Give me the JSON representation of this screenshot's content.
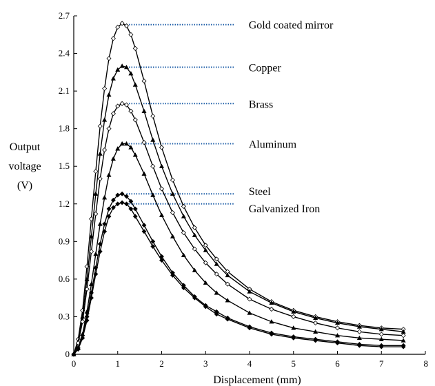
{
  "chart_data": {
    "type": "line",
    "title": "",
    "xlabel": "Displacement (mm)",
    "ylabel_lines": [
      "Output",
      "voltage",
      "(V)"
    ],
    "xlim": [
      0,
      8
    ],
    "ylim": [
      0,
      2.7
    ],
    "x_ticks": [
      "0",
      "1",
      "2",
      "3",
      "4",
      "5",
      "6",
      "7",
      "8"
    ],
    "y_ticks": [
      "0",
      "0.3",
      "0.6",
      "0.9",
      "1.2",
      "1.5",
      "1.8",
      "2.1",
      "2.4",
      "2.7"
    ],
    "grid": false,
    "line_color": "#000000",
    "leader_color": "#1f5fa8",
    "series": [
      {
        "name": "Gold coated mirror",
        "marker": "open-diamond",
        "x": [
          0,
          0.1,
          0.2,
          0.3,
          0.4,
          0.5,
          0.6,
          0.7,
          0.8,
          0.9,
          1.0,
          1.1,
          1.2,
          1.3,
          1.4,
          1.6,
          1.8,
          2.0,
          2.25,
          2.5,
          2.75,
          3.0,
          3.25,
          3.5,
          4.0,
          4.5,
          5.0,
          5.5,
          6.0,
          6.5,
          7.0,
          7.5
        ],
        "values": [
          0,
          0.12,
          0.35,
          0.7,
          1.08,
          1.46,
          1.82,
          2.12,
          2.36,
          2.52,
          2.61,
          2.64,
          2.62,
          2.55,
          2.44,
          2.18,
          1.9,
          1.65,
          1.39,
          1.18,
          1.01,
          0.87,
          0.76,
          0.66,
          0.52,
          0.42,
          0.35,
          0.3,
          0.26,
          0.23,
          0.21,
          0.2
        ]
      },
      {
        "name": "Copper",
        "marker": "filled-triangle",
        "x": [
          0,
          0.1,
          0.2,
          0.3,
          0.4,
          0.5,
          0.6,
          0.7,
          0.8,
          0.9,
          1.0,
          1.1,
          1.2,
          1.3,
          1.4,
          1.6,
          1.8,
          2.0,
          2.25,
          2.5,
          2.75,
          3.0,
          3.25,
          3.5,
          4.0,
          4.5,
          5.0,
          5.5,
          6.0,
          6.5,
          7.0,
          7.5
        ],
        "values": [
          0,
          0.1,
          0.3,
          0.6,
          0.94,
          1.28,
          1.6,
          1.87,
          2.07,
          2.2,
          2.27,
          2.3,
          2.29,
          2.24,
          2.15,
          1.94,
          1.71,
          1.5,
          1.28,
          1.1,
          0.95,
          0.83,
          0.72,
          0.63,
          0.5,
          0.41,
          0.34,
          0.29,
          0.25,
          0.22,
          0.2,
          0.18
        ]
      },
      {
        "name": "Brass",
        "marker": "open-diamond",
        "x": [
          0,
          0.1,
          0.2,
          0.3,
          0.4,
          0.5,
          0.6,
          0.7,
          0.8,
          0.9,
          1.0,
          1.1,
          1.2,
          1.3,
          1.4,
          1.6,
          1.8,
          2.0,
          2.25,
          2.5,
          2.75,
          3.0,
          3.25,
          3.5,
          4.0,
          4.5,
          5.0,
          5.5,
          6.0,
          6.5,
          7.0,
          7.5
        ],
        "values": [
          0,
          0.09,
          0.26,
          0.52,
          0.82,
          1.12,
          1.4,
          1.63,
          1.8,
          1.92,
          1.98,
          2.0,
          1.99,
          1.94,
          1.87,
          1.69,
          1.5,
          1.32,
          1.13,
          0.97,
          0.84,
          0.73,
          0.64,
          0.56,
          0.44,
          0.36,
          0.3,
          0.25,
          0.21,
          0.18,
          0.16,
          0.15
        ]
      },
      {
        "name": "Aluminum",
        "marker": "filled-triangle",
        "x": [
          0,
          0.1,
          0.2,
          0.3,
          0.4,
          0.5,
          0.6,
          0.7,
          0.8,
          0.9,
          1.0,
          1.1,
          1.2,
          1.3,
          1.4,
          1.6,
          1.8,
          2.0,
          2.25,
          2.5,
          2.75,
          3.0,
          3.25,
          3.5,
          4.0,
          4.5,
          5.0,
          5.5,
          6.0,
          6.5,
          7.0,
          7.5
        ],
        "values": [
          0,
          0.05,
          0.16,
          0.34,
          0.56,
          0.8,
          1.04,
          1.25,
          1.43,
          1.56,
          1.64,
          1.68,
          1.68,
          1.65,
          1.59,
          1.44,
          1.27,
          1.11,
          0.94,
          0.79,
          0.67,
          0.57,
          0.49,
          0.43,
          0.33,
          0.26,
          0.21,
          0.18,
          0.15,
          0.13,
          0.12,
          0.11
        ]
      },
      {
        "name": "Steel",
        "marker": "filled-diamond",
        "x": [
          0,
          0.1,
          0.2,
          0.3,
          0.4,
          0.5,
          0.6,
          0.7,
          0.8,
          0.9,
          1.0,
          1.1,
          1.2,
          1.3,
          1.4,
          1.6,
          1.8,
          2.0,
          2.25,
          2.5,
          2.75,
          3.0,
          3.25,
          3.5,
          4.0,
          4.5,
          5.0,
          5.5,
          6.0,
          6.5,
          7.0,
          7.5
        ],
        "values": [
          0,
          0.05,
          0.15,
          0.3,
          0.49,
          0.69,
          0.88,
          1.04,
          1.16,
          1.23,
          1.27,
          1.28,
          1.26,
          1.22,
          1.16,
          1.03,
          0.9,
          0.78,
          0.65,
          0.55,
          0.46,
          0.39,
          0.34,
          0.29,
          0.22,
          0.17,
          0.14,
          0.12,
          0.1,
          0.08,
          0.07,
          0.07
        ]
      },
      {
        "name": "Galvanized Iron",
        "marker": "filled-diamond",
        "x": [
          0,
          0.1,
          0.2,
          0.3,
          0.4,
          0.5,
          0.6,
          0.7,
          0.8,
          0.9,
          1.0,
          1.1,
          1.2,
          1.3,
          1.4,
          1.6,
          1.8,
          2.0,
          2.25,
          2.5,
          2.75,
          3.0,
          3.25,
          3.5,
          4.0,
          4.5,
          5.0,
          5.5,
          6.0,
          6.5,
          7.0,
          7.5
        ],
        "values": [
          0,
          0.04,
          0.13,
          0.27,
          0.45,
          0.64,
          0.82,
          0.98,
          1.1,
          1.17,
          1.2,
          1.21,
          1.2,
          1.16,
          1.1,
          0.98,
          0.86,
          0.75,
          0.63,
          0.53,
          0.45,
          0.38,
          0.32,
          0.28,
          0.21,
          0.16,
          0.13,
          0.11,
          0.09,
          0.07,
          0.06,
          0.06
        ]
      }
    ],
    "annotations": [
      {
        "text": "Gold coated mirror",
        "x_start": 1.2,
        "x_end": 3.65,
        "y": 2.63
      },
      {
        "text": "Copper",
        "x_start": 1.2,
        "x_end": 3.65,
        "y": 2.29
      },
      {
        "text": "Brass",
        "x_start": 1.2,
        "x_end": 3.65,
        "y": 2.0
      },
      {
        "text": "Aluminum",
        "x_start": 1.25,
        "x_end": 3.65,
        "y": 1.68
      },
      {
        "text": "Steel",
        "x_start": 1.2,
        "x_end": 3.65,
        "y": 1.28
      },
      {
        "text": "Galvanized Iron",
        "x_start": 1.25,
        "x_end": 3.65,
        "y": 1.2
      }
    ]
  }
}
